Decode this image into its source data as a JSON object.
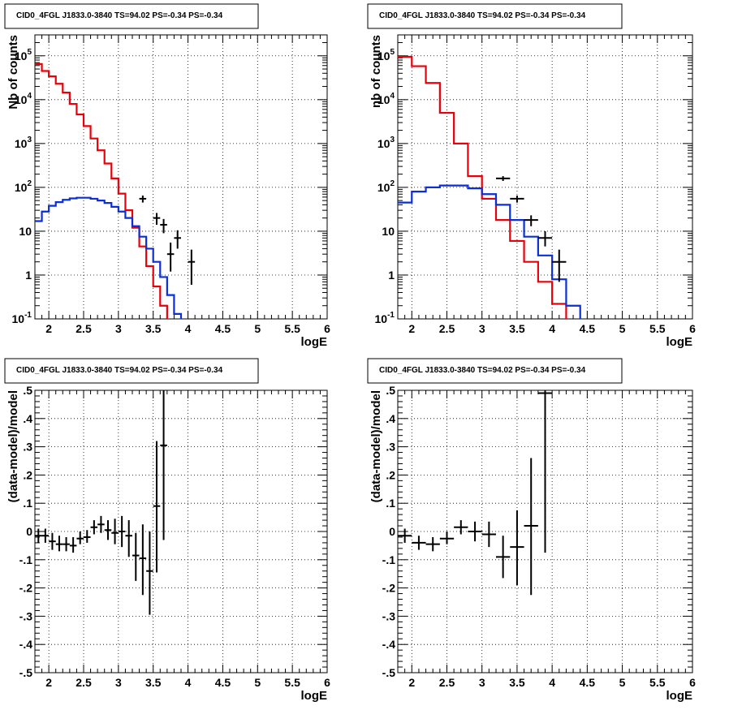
{
  "panels": [
    {
      "title": "CID0_4FGL J1833.0-3840 TS=94.02 PS=-0.34 PS=-0.34",
      "xlabel": "logE",
      "ylabel": "Nb of counts"
    },
    {
      "title": "CID0_4FGL J1833.0-3840 TS=94.02 PS=-0.34 PS=-0.34",
      "xlabel": "logE",
      "ylabel": "nb of counts"
    },
    {
      "title": "CID0_4FGL J1833.0-3840 TS=94.02 PS=-0.34 PS=-0.34",
      "xlabel": "logE",
      "ylabel": "(data-model)/model"
    },
    {
      "title": "CID0_4FGL J1833.0-3840 TS=94.02 PS=-0.34 PS=-0.34",
      "xlabel": "logE",
      "ylabel": "(data-model)/model"
    }
  ],
  "colors": {
    "data": "#000000",
    "total_model": "#e8000b",
    "source_model": "#0a2fd6",
    "grid": "#000000"
  },
  "chart_data": [
    {
      "type": "line",
      "title": "CID0_4FGL J1833.0-3840 TS=94.02 PS=-0.34 PS=-0.34",
      "xlabel": "logE",
      "ylabel": "Nb of counts",
      "xlim": [
        1.8,
        6.0
      ],
      "ylim": [
        0.1,
        300000
      ],
      "yscale": "log",
      "grid": true,
      "x_ticks": [
        2,
        2.5,
        3,
        3.5,
        4,
        4.5,
        5,
        5.5,
        6
      ],
      "y_ticks": [
        0.1,
        1,
        10,
        100,
        1000,
        10000,
        100000
      ],
      "y_tick_labels": [
        "10^-1",
        "1",
        "10",
        "10^2",
        "10^3",
        "10^4",
        "10^5"
      ],
      "bin_edges": [
        1.8,
        1.9,
        2.0,
        2.1,
        2.2,
        2.3,
        2.4,
        2.5,
        2.6,
        2.7,
        2.8,
        2.9,
        3.0,
        3.1,
        3.2,
        3.3,
        3.4,
        3.5,
        3.6,
        3.7,
        3.8,
        3.9,
        4.0,
        4.1,
        4.2,
        4.3,
        4.4,
        4.5,
        4.6,
        4.7,
        4.8,
        4.9,
        5.0,
        5.1,
        5.2,
        5.3,
        5.4,
        5.5,
        5.6,
        5.7,
        5.8,
        5.9,
        6.0
      ],
      "series": [
        {
          "name": "total model",
          "style": "step",
          "values": [
            65000,
            45000,
            34000,
            23000,
            14500,
            8000,
            4600,
            2500,
            1300,
            700,
            350,
            160,
            72,
            30,
            12,
            4.5,
            1.6,
            0.55,
            0.2,
            0.07,
            0.07,
            0.07,
            0.07,
            0.07,
            0.07,
            0.07,
            0.07,
            0.07,
            0.07,
            0.07,
            0.07,
            0.07,
            0.07,
            0.07,
            0.07,
            0.07,
            0.07,
            0.07,
            0.07,
            0.07,
            0.07,
            0.07
          ]
        },
        {
          "name": "source model",
          "style": "step",
          "values": [
            17,
            28,
            38,
            46,
            52,
            56,
            58,
            58,
            55,
            50,
            44,
            36,
            28,
            20,
            13,
            7.5,
            4,
            2,
            0.9,
            0.35,
            0.13,
            0.07,
            0.07,
            0.07,
            0.07,
            0.07,
            0.07,
            0.07,
            0.07,
            0.07,
            0.07,
            0.07,
            0.07,
            0.07,
            0.07,
            0.07,
            0.07,
            0.07,
            0.07,
            0.07,
            0.07,
            0.07
          ]
        },
        {
          "name": "data",
          "style": "errorbar",
          "points": [
            {
              "x": 3.35,
              "y": 55,
              "lo": 45,
              "hi": 65
            },
            {
              "x": 3.55,
              "y": 20,
              "lo": 14,
              "hi": 26
            },
            {
              "x": 3.65,
              "y": 14,
              "lo": 9,
              "hi": 19
            },
            {
              "x": 3.75,
              "y": 3,
              "lo": 1.2,
              "hi": 5.5
            },
            {
              "x": 3.85,
              "y": 7,
              "lo": 4,
              "hi": 10.5
            },
            {
              "x": 4.05,
              "y": 2,
              "lo": 0.6,
              "hi": 3.8
            }
          ]
        }
      ]
    },
    {
      "type": "line",
      "title": "CID0_4FGL J1833.0-3840 TS=94.02 PS=-0.34 PS=-0.34",
      "xlabel": "logE",
      "ylabel": "nb of counts",
      "xlim": [
        1.8,
        6.0
      ],
      "ylim": [
        0.1,
        300000
      ],
      "yscale": "log",
      "grid": true,
      "x_ticks": [
        2,
        2.5,
        3,
        3.5,
        4,
        4.5,
        5,
        5.5,
        6
      ],
      "y_ticks": [
        0.1,
        1,
        10,
        100,
        1000,
        10000,
        100000
      ],
      "y_tick_labels": [
        "10^-1",
        "1",
        "10",
        "10^2",
        "10^3",
        "10^4",
        "10^5"
      ],
      "bin_edges": [
        1.8,
        2.0,
        2.2,
        2.4,
        2.6,
        2.8,
        3.0,
        3.2,
        3.4,
        3.6,
        3.8,
        4.0,
        4.2,
        4.4,
        4.6,
        4.8,
        5.0,
        5.2,
        5.4,
        5.6,
        5.8,
        6.0
      ],
      "series": [
        {
          "name": "total model",
          "style": "step",
          "values": [
            95000,
            58000,
            24000,
            5000,
            1000,
            180,
            55,
            18,
            6,
            2,
            0.7,
            0.22,
            0.07,
            0.07,
            0.07,
            0.07,
            0.07,
            0.07,
            0.07,
            0.07,
            0.07
          ]
        },
        {
          "name": "source model",
          "style": "step",
          "values": [
            45,
            80,
            100,
            110,
            110,
            95,
            70,
            40,
            18,
            7.5,
            2.8,
            0.8,
            0.2,
            0.07,
            0.07,
            0.07,
            0.07,
            0.07,
            0.07,
            0.07,
            0.07
          ]
        },
        {
          "name": "data",
          "style": "errorbar",
          "points": [
            {
              "x": 3.3,
              "y": 160,
              "lo": 140,
              "hi": 180
            },
            {
              "x": 3.5,
              "y": 55,
              "lo": 45,
              "hi": 65
            },
            {
              "x": 3.7,
              "y": 18,
              "lo": 13,
              "hi": 23
            },
            {
              "x": 3.9,
              "y": 7,
              "lo": 4.5,
              "hi": 10
            },
            {
              "x": 4.1,
              "y": 2,
              "lo": 0.7,
              "hi": 3.8
            }
          ]
        }
      ]
    },
    {
      "type": "scatter",
      "title": "CID0_4FGL J1833.0-3840 TS=94.02 PS=-0.34 PS=-0.34",
      "xlabel": "logE",
      "ylabel": "(data-model)/model",
      "xlim": [
        1.8,
        6.0
      ],
      "ylim": [
        -0.5,
        0.5
      ],
      "grid": true,
      "x_ticks": [
        2,
        2.5,
        3,
        3.5,
        4,
        4.5,
        5,
        5.5,
        6
      ],
      "y_ticks": [
        -0.5,
        -0.4,
        -0.3,
        -0.2,
        -0.1,
        0,
        0.1,
        0.2,
        0.3,
        0.4,
        0.5
      ],
      "points": [
        {
          "x": 1.85,
          "y": -0.015,
          "lo": -0.04,
          "hi": 0.01,
          "xerr": 0.05
        },
        {
          "x": 1.95,
          "y": -0.015,
          "lo": -0.04,
          "hi": 0.01,
          "xerr": 0.05
        },
        {
          "x": 2.05,
          "y": -0.035,
          "lo": -0.065,
          "hi": -0.005,
          "xerr": 0.05
        },
        {
          "x": 2.15,
          "y": -0.045,
          "lo": -0.07,
          "hi": -0.015,
          "xerr": 0.05
        },
        {
          "x": 2.25,
          "y": -0.045,
          "lo": -0.07,
          "hi": -0.02,
          "xerr": 0.05
        },
        {
          "x": 2.35,
          "y": -0.05,
          "lo": -0.075,
          "hi": -0.02,
          "xerr": 0.05
        },
        {
          "x": 2.45,
          "y": -0.025,
          "lo": -0.045,
          "hi": 0.0,
          "xerr": 0.05
        },
        {
          "x": 2.55,
          "y": -0.02,
          "lo": -0.04,
          "hi": 0.005,
          "xerr": 0.05
        },
        {
          "x": 2.65,
          "y": 0.015,
          "lo": -0.01,
          "hi": 0.04,
          "xerr": 0.05
        },
        {
          "x": 2.75,
          "y": 0.025,
          "lo": -0.005,
          "hi": 0.055,
          "xerr": 0.05
        },
        {
          "x": 2.85,
          "y": 0.005,
          "lo": -0.03,
          "hi": 0.04,
          "xerr": 0.05
        },
        {
          "x": 2.95,
          "y": -0.005,
          "lo": -0.045,
          "hi": 0.045,
          "xerr": 0.05
        },
        {
          "x": 3.05,
          "y": 0.0,
          "lo": -0.055,
          "hi": 0.055,
          "xerr": 0.05
        },
        {
          "x": 3.15,
          "y": -0.015,
          "lo": -0.09,
          "hi": 0.04,
          "xerr": 0.05
        },
        {
          "x": 3.25,
          "y": -0.085,
          "lo": -0.175,
          "hi": -0.005,
          "xerr": 0.05
        },
        {
          "x": 3.35,
          "y": -0.095,
          "lo": -0.225,
          "hi": 0.025,
          "xerr": 0.05
        },
        {
          "x": 3.45,
          "y": -0.14,
          "lo": -0.295,
          "hi": 0.0,
          "xerr": 0.05
        },
        {
          "x": 3.55,
          "y": 0.09,
          "lo": -0.145,
          "hi": 0.32,
          "xerr": 0.05
        },
        {
          "x": 3.65,
          "y": 0.305,
          "lo": -0.03,
          "hi": 0.5,
          "xerr": 0.05
        }
      ]
    },
    {
      "type": "scatter",
      "title": "CID0_4FGL J1833.0-3840 TS=94.02 PS=-0.34 PS=-0.34",
      "xlabel": "logE",
      "ylabel": "(data-model)/model",
      "xlim": [
        1.8,
        6.0
      ],
      "ylim": [
        -0.5,
        0.5
      ],
      "grid": true,
      "x_ticks": [
        2,
        2.5,
        3,
        3.5,
        4,
        4.5,
        5,
        5.5,
        6
      ],
      "y_ticks": [
        -0.5,
        -0.4,
        -0.3,
        -0.2,
        -0.1,
        0,
        0.1,
        0.2,
        0.3,
        0.4,
        0.5
      ],
      "points": [
        {
          "x": 1.9,
          "y": -0.015,
          "lo": -0.04,
          "hi": 0.01,
          "xerr": 0.1
        },
        {
          "x": 2.1,
          "y": -0.04,
          "lo": -0.065,
          "hi": -0.015,
          "xerr": 0.1
        },
        {
          "x": 2.3,
          "y": -0.045,
          "lo": -0.07,
          "hi": -0.02,
          "xerr": 0.1
        },
        {
          "x": 2.5,
          "y": -0.025,
          "lo": -0.045,
          "hi": 0.0,
          "xerr": 0.1
        },
        {
          "x": 2.7,
          "y": 0.015,
          "lo": -0.01,
          "hi": 0.04,
          "xerr": 0.1
        },
        {
          "x": 2.9,
          "y": 0.0,
          "lo": -0.035,
          "hi": 0.035,
          "xerr": 0.1
        },
        {
          "x": 3.1,
          "y": -0.01,
          "lo": -0.055,
          "hi": 0.035,
          "xerr": 0.1
        },
        {
          "x": 3.3,
          "y": -0.09,
          "lo": -0.165,
          "hi": -0.015,
          "xerr": 0.1
        },
        {
          "x": 3.5,
          "y": -0.055,
          "lo": -0.19,
          "hi": 0.075,
          "xerr": 0.1
        },
        {
          "x": 3.7,
          "y": 0.02,
          "lo": -0.225,
          "hi": 0.26,
          "xerr": 0.1
        },
        {
          "x": 3.9,
          "y": 0.49,
          "lo": -0.075,
          "hi": 0.5,
          "xerr": 0.1
        }
      ]
    }
  ]
}
